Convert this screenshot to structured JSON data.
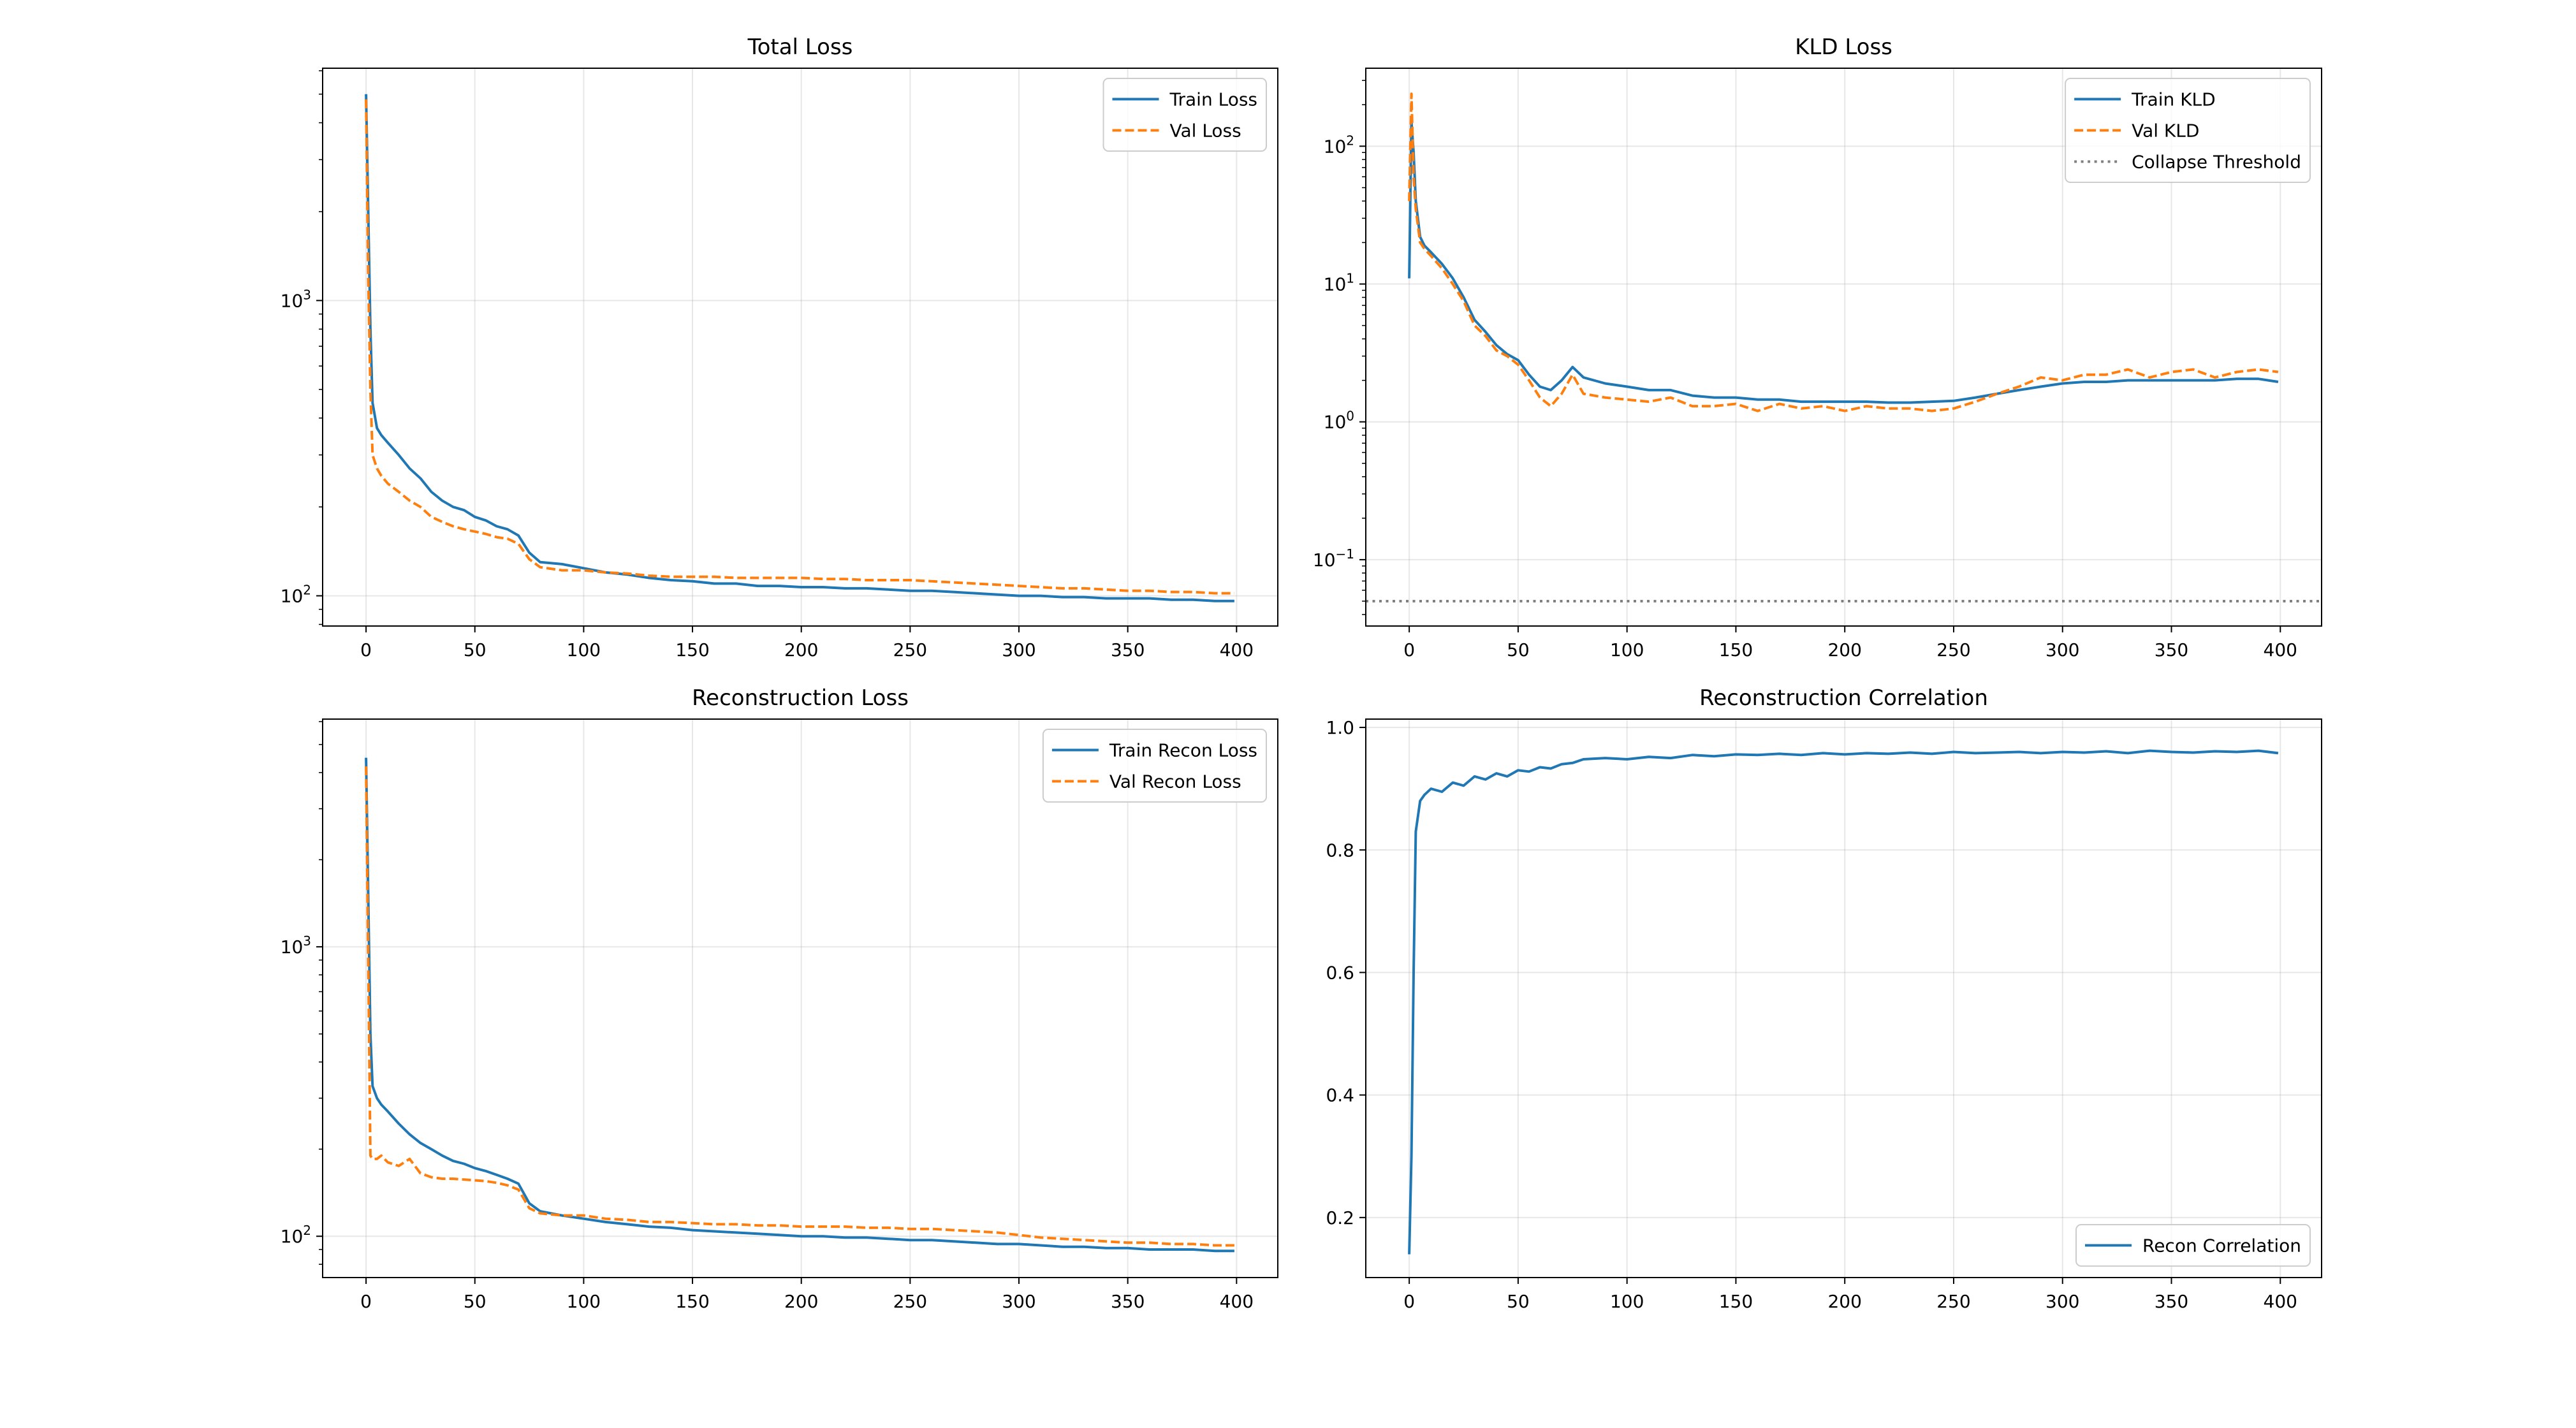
{
  "colors": {
    "train": "#1f77b4",
    "val": "#ff7f0e",
    "threshold": "#808080",
    "grid": "#b0b0b0"
  },
  "chart_data": [
    {
      "type": "line",
      "title": "Total Loss",
      "yscale": "log",
      "xlim": [
        -19.95,
        418.95
      ],
      "ylim": [
        79,
        6120
      ],
      "grid": true,
      "legend_placement": "upper-right",
      "xticks": [
        {
          "v": 0,
          "label": "0"
        },
        {
          "v": 50,
          "label": "50"
        },
        {
          "v": 100,
          "label": "100"
        },
        {
          "v": 150,
          "label": "150"
        },
        {
          "v": 200,
          "label": "200"
        },
        {
          "v": 250,
          "label": "250"
        },
        {
          "v": 300,
          "label": "300"
        },
        {
          "v": 350,
          "label": "350"
        },
        {
          "v": 400,
          "label": "400"
        }
      ],
      "yticks": [
        {
          "v": 100,
          "base": "10",
          "exp": "2"
        },
        {
          "v": 1000,
          "base": "10",
          "exp": "3"
        }
      ],
      "x": [
        0,
        1,
        2,
        3,
        5,
        7,
        10,
        15,
        20,
        25,
        30,
        35,
        40,
        45,
        50,
        55,
        60,
        65,
        70,
        75,
        80,
        90,
        100,
        110,
        120,
        130,
        140,
        150,
        160,
        170,
        180,
        190,
        200,
        210,
        220,
        230,
        240,
        250,
        260,
        270,
        280,
        290,
        300,
        310,
        320,
        330,
        340,
        350,
        360,
        370,
        380,
        390,
        399
      ],
      "series": [
        {
          "name": "Train Loss",
          "style": "solid",
          "color": "train",
          "values": [
            5000,
            2000,
            800,
            450,
            370,
            350,
            330,
            300,
            270,
            250,
            225,
            210,
            200,
            195,
            185,
            180,
            172,
            168,
            160,
            140,
            130,
            128,
            124,
            120,
            118,
            115,
            113,
            112,
            110,
            110,
            108,
            108,
            107,
            107,
            106,
            106,
            105,
            104,
            104,
            103,
            102,
            101,
            100,
            100,
            99,
            99,
            98,
            98,
            98,
            97,
            97,
            96,
            96
          ]
        },
        {
          "name": "Val Loss",
          "style": "dashed",
          "color": "val",
          "values": [
            4800,
            1200,
            500,
            300,
            270,
            255,
            240,
            225,
            210,
            200,
            185,
            178,
            172,
            168,
            165,
            162,
            158,
            156,
            150,
            133,
            125,
            122,
            122,
            120,
            119,
            117,
            116,
            116,
            116,
            115,
            115,
            115,
            115,
            114,
            114,
            113,
            113,
            113,
            112,
            111,
            110,
            109,
            108,
            107,
            106,
            106,
            105,
            104,
            104,
            103,
            103,
            102,
            102
          ]
        }
      ]
    },
    {
      "type": "line",
      "title": "KLD Loss",
      "yscale": "log",
      "xlim": [
        -19.95,
        418.95
      ],
      "ylim": [
        0.033,
        368
      ],
      "grid": true,
      "legend_placement": "upper-right",
      "xticks": [
        {
          "v": 0,
          "label": "0"
        },
        {
          "v": 50,
          "label": "50"
        },
        {
          "v": 100,
          "label": "100"
        },
        {
          "v": 150,
          "label": "150"
        },
        {
          "v": 200,
          "label": "200"
        },
        {
          "v": 250,
          "label": "250"
        },
        {
          "v": 300,
          "label": "300"
        },
        {
          "v": 350,
          "label": "350"
        },
        {
          "v": 400,
          "label": "400"
        }
      ],
      "yticks": [
        {
          "v": 0.1,
          "base": "10",
          "exp": "−1"
        },
        {
          "v": 1,
          "base": "10",
          "exp": "0"
        },
        {
          "v": 10,
          "base": "10",
          "exp": "1"
        },
        {
          "v": 100,
          "base": "10",
          "exp": "2"
        }
      ],
      "x": [
        0,
        1,
        2,
        3,
        5,
        7,
        10,
        15,
        20,
        25,
        30,
        35,
        40,
        45,
        50,
        55,
        60,
        65,
        70,
        75,
        80,
        90,
        100,
        110,
        120,
        130,
        140,
        150,
        160,
        170,
        180,
        190,
        200,
        210,
        220,
        230,
        240,
        250,
        260,
        270,
        280,
        290,
        300,
        310,
        320,
        330,
        340,
        350,
        360,
        370,
        380,
        390,
        399
      ],
      "series": [
        {
          "name": "Train KLD",
          "style": "solid",
          "color": "train",
          "values": [
            11,
            150,
            90,
            40,
            22,
            19,
            17,
            14,
            11,
            8,
            5.5,
            4.5,
            3.6,
            3.1,
            2.8,
            2.2,
            1.8,
            1.7,
            2.0,
            2.5,
            2.1,
            1.9,
            1.8,
            1.7,
            1.7,
            1.55,
            1.5,
            1.5,
            1.45,
            1.45,
            1.4,
            1.4,
            1.4,
            1.4,
            1.38,
            1.38,
            1.4,
            1.42,
            1.5,
            1.6,
            1.7,
            1.8,
            1.9,
            1.95,
            1.95,
            2.0,
            2.0,
            2.0,
            2.0,
            2.0,
            2.05,
            2.05,
            1.95
          ]
        },
        {
          "name": "Val KLD",
          "style": "dashed",
          "color": "val",
          "values": [
            40,
            240,
            60,
            35,
            20,
            18,
            16,
            13,
            10,
            7.5,
            5,
            4.2,
            3.3,
            3.0,
            2.6,
            2.0,
            1.5,
            1.3,
            1.6,
            2.2,
            1.6,
            1.5,
            1.45,
            1.4,
            1.5,
            1.3,
            1.3,
            1.35,
            1.2,
            1.35,
            1.25,
            1.3,
            1.2,
            1.3,
            1.25,
            1.25,
            1.2,
            1.25,
            1.4,
            1.6,
            1.8,
            2.1,
            2.0,
            2.2,
            2.2,
            2.4,
            2.1,
            2.3,
            2.4,
            2.1,
            2.3,
            2.4,
            2.3
          ]
        }
      ],
      "hlines": [
        {
          "name": "Collapse Threshold",
          "value": 0.05,
          "style": "dotted",
          "color": "threshold"
        }
      ]
    },
    {
      "type": "line",
      "title": "Reconstruction Loss",
      "yscale": "log",
      "xlim": [
        -19.95,
        418.95
      ],
      "ylim": [
        72,
        6120
      ],
      "grid": true,
      "legend_placement": "upper-right",
      "xticks": [
        {
          "v": 0,
          "label": "0"
        },
        {
          "v": 50,
          "label": "50"
        },
        {
          "v": 100,
          "label": "100"
        },
        {
          "v": 150,
          "label": "150"
        },
        {
          "v": 200,
          "label": "200"
        },
        {
          "v": 250,
          "label": "250"
        },
        {
          "v": 300,
          "label": "300"
        },
        {
          "v": 350,
          "label": "350"
        },
        {
          "v": 400,
          "label": "400"
        }
      ],
      "yticks": [
        {
          "v": 100,
          "base": "10",
          "exp": "2"
        },
        {
          "v": 1000,
          "base": "10",
          "exp": "3"
        }
      ],
      "x": [
        0,
        1,
        2,
        3,
        5,
        7,
        10,
        15,
        20,
        25,
        30,
        35,
        40,
        45,
        50,
        55,
        60,
        65,
        70,
        75,
        80,
        90,
        100,
        110,
        120,
        130,
        140,
        150,
        160,
        170,
        180,
        190,
        200,
        210,
        220,
        230,
        240,
        250,
        260,
        270,
        280,
        290,
        300,
        310,
        320,
        330,
        340,
        350,
        360,
        370,
        380,
        390,
        399
      ],
      "series": [
        {
          "name": "Train Recon Loss",
          "style": "solid",
          "color": "train",
          "values": [
            4500,
            1500,
            500,
            330,
            300,
            285,
            270,
            245,
            225,
            210,
            200,
            190,
            182,
            178,
            172,
            168,
            163,
            158,
            152,
            130,
            122,
            118,
            115,
            112,
            110,
            108,
            107,
            105,
            104,
            103,
            102,
            101,
            100,
            100,
            99,
            99,
            98,
            97,
            97,
            96,
            95,
            94,
            94,
            93,
            92,
            92,
            91,
            91,
            90,
            90,
            90,
            89,
            89
          ]
        },
        {
          "name": "Val Recon Loss",
          "style": "dashed",
          "color": "val",
          "values": [
            4200,
            900,
            190,
            185,
            185,
            190,
            180,
            175,
            185,
            165,
            160,
            158,
            158,
            157,
            156,
            155,
            153,
            150,
            145,
            125,
            120,
            118,
            118,
            115,
            114,
            112,
            112,
            111,
            110,
            110,
            109,
            109,
            108,
            108,
            108,
            107,
            107,
            106,
            106,
            105,
            104,
            103,
            101,
            99,
            98,
            97,
            96,
            95,
            95,
            94,
            94,
            93,
            93
          ]
        }
      ]
    },
    {
      "type": "line",
      "title": "Reconstruction Correlation",
      "yscale": "linear",
      "xlim": [
        -19.95,
        418.95
      ],
      "ylim": [
        0.102,
        1.0136
      ],
      "grid": true,
      "legend_placement": "lower-right",
      "xticks": [
        {
          "v": 0,
          "label": "0"
        },
        {
          "v": 50,
          "label": "50"
        },
        {
          "v": 100,
          "label": "100"
        },
        {
          "v": 150,
          "label": "150"
        },
        {
          "v": 200,
          "label": "200"
        },
        {
          "v": 250,
          "label": "250"
        },
        {
          "v": 300,
          "label": "300"
        },
        {
          "v": 350,
          "label": "350"
        },
        {
          "v": 400,
          "label": "400"
        }
      ],
      "yticks": [
        {
          "v": 0.2,
          "label": "0.2"
        },
        {
          "v": 0.4,
          "label": "0.4"
        },
        {
          "v": 0.6,
          "label": "0.6"
        },
        {
          "v": 0.8,
          "label": "0.8"
        },
        {
          "v": 1.0,
          "label": "1.0"
        }
      ],
      "x": [
        0,
        1,
        2,
        3,
        5,
        7,
        10,
        15,
        20,
        25,
        30,
        35,
        40,
        45,
        50,
        55,
        60,
        65,
        70,
        75,
        80,
        90,
        100,
        110,
        120,
        130,
        140,
        150,
        160,
        170,
        180,
        190,
        200,
        210,
        220,
        230,
        240,
        250,
        260,
        270,
        280,
        290,
        300,
        310,
        320,
        330,
        340,
        350,
        360,
        370,
        380,
        390,
        399
      ],
      "series": [
        {
          "name": "Recon Correlation",
          "style": "solid",
          "color": "train",
          "values": [
            0.14,
            0.3,
            0.6,
            0.83,
            0.88,
            0.89,
            0.9,
            0.895,
            0.91,
            0.905,
            0.92,
            0.915,
            0.925,
            0.92,
            0.93,
            0.928,
            0.935,
            0.933,
            0.94,
            0.942,
            0.948,
            0.95,
            0.948,
            0.952,
            0.95,
            0.955,
            0.953,
            0.956,
            0.955,
            0.957,
            0.955,
            0.958,
            0.956,
            0.958,
            0.957,
            0.959,
            0.957,
            0.96,
            0.958,
            0.959,
            0.96,
            0.958,
            0.96,
            0.959,
            0.961,
            0.958,
            0.962,
            0.96,
            0.959,
            0.961,
            0.96,
            0.962,
            0.958
          ]
        }
      ]
    }
  ]
}
